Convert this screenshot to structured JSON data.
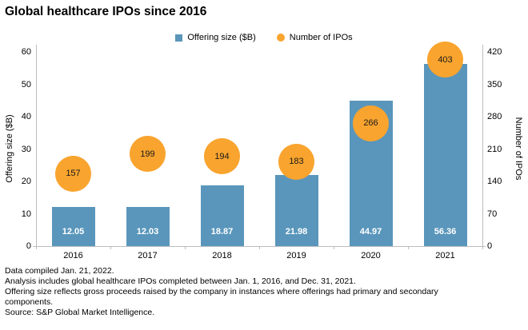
{
  "title": "Global healthcare IPOs since 2016",
  "legend": {
    "bar_label": "Offering size ($B)",
    "bubble_label": "Number of IPOs"
  },
  "colors": {
    "bar": "#5A96BB",
    "bubble": "#F9A42E",
    "axis_line": "#BDBDBD",
    "bar_value_text": "#FFFFFF",
    "bubble_value_text": "#1A1A1A",
    "text": "#000000"
  },
  "chart_data": {
    "type": "bar",
    "title": "Global healthcare IPOs since 2016",
    "categories": [
      "2016",
      "2017",
      "2018",
      "2019",
      "2020",
      "2021"
    ],
    "series": [
      {
        "name": "Offering size ($B)",
        "type": "bar",
        "axis": "left",
        "values": [
          12.05,
          12.03,
          18.87,
          21.98,
          44.97,
          56.36
        ]
      },
      {
        "name": "Number of IPOs",
        "type": "bubble",
        "axis": "right",
        "values": [
          157,
          199,
          194,
          183,
          266,
          403
        ]
      }
    ],
    "left_axis": {
      "label": "Offering size ($B)",
      "min": 0,
      "max": 60,
      "ticks": [
        0,
        10,
        20,
        30,
        40,
        50,
        60
      ]
    },
    "right_axis": {
      "label": "Number of IPOs",
      "min": 0,
      "max": 420,
      "ticks": [
        0,
        70,
        140,
        210,
        280,
        350,
        420
      ]
    },
    "grid": false,
    "legend_position": "top-center"
  },
  "footer": {
    "lines": [
      "Data compiled Jan. 21, 2022.",
      "Analysis includes global healthcare IPOs completed between Jan. 1, 2016, and Dec. 31, 2021.",
      "Offering size reflects gross proceeds raised by the company in instances where offerings had primary and secondary",
      "components.",
      "Source: S&P Global Market Intelligence."
    ]
  }
}
